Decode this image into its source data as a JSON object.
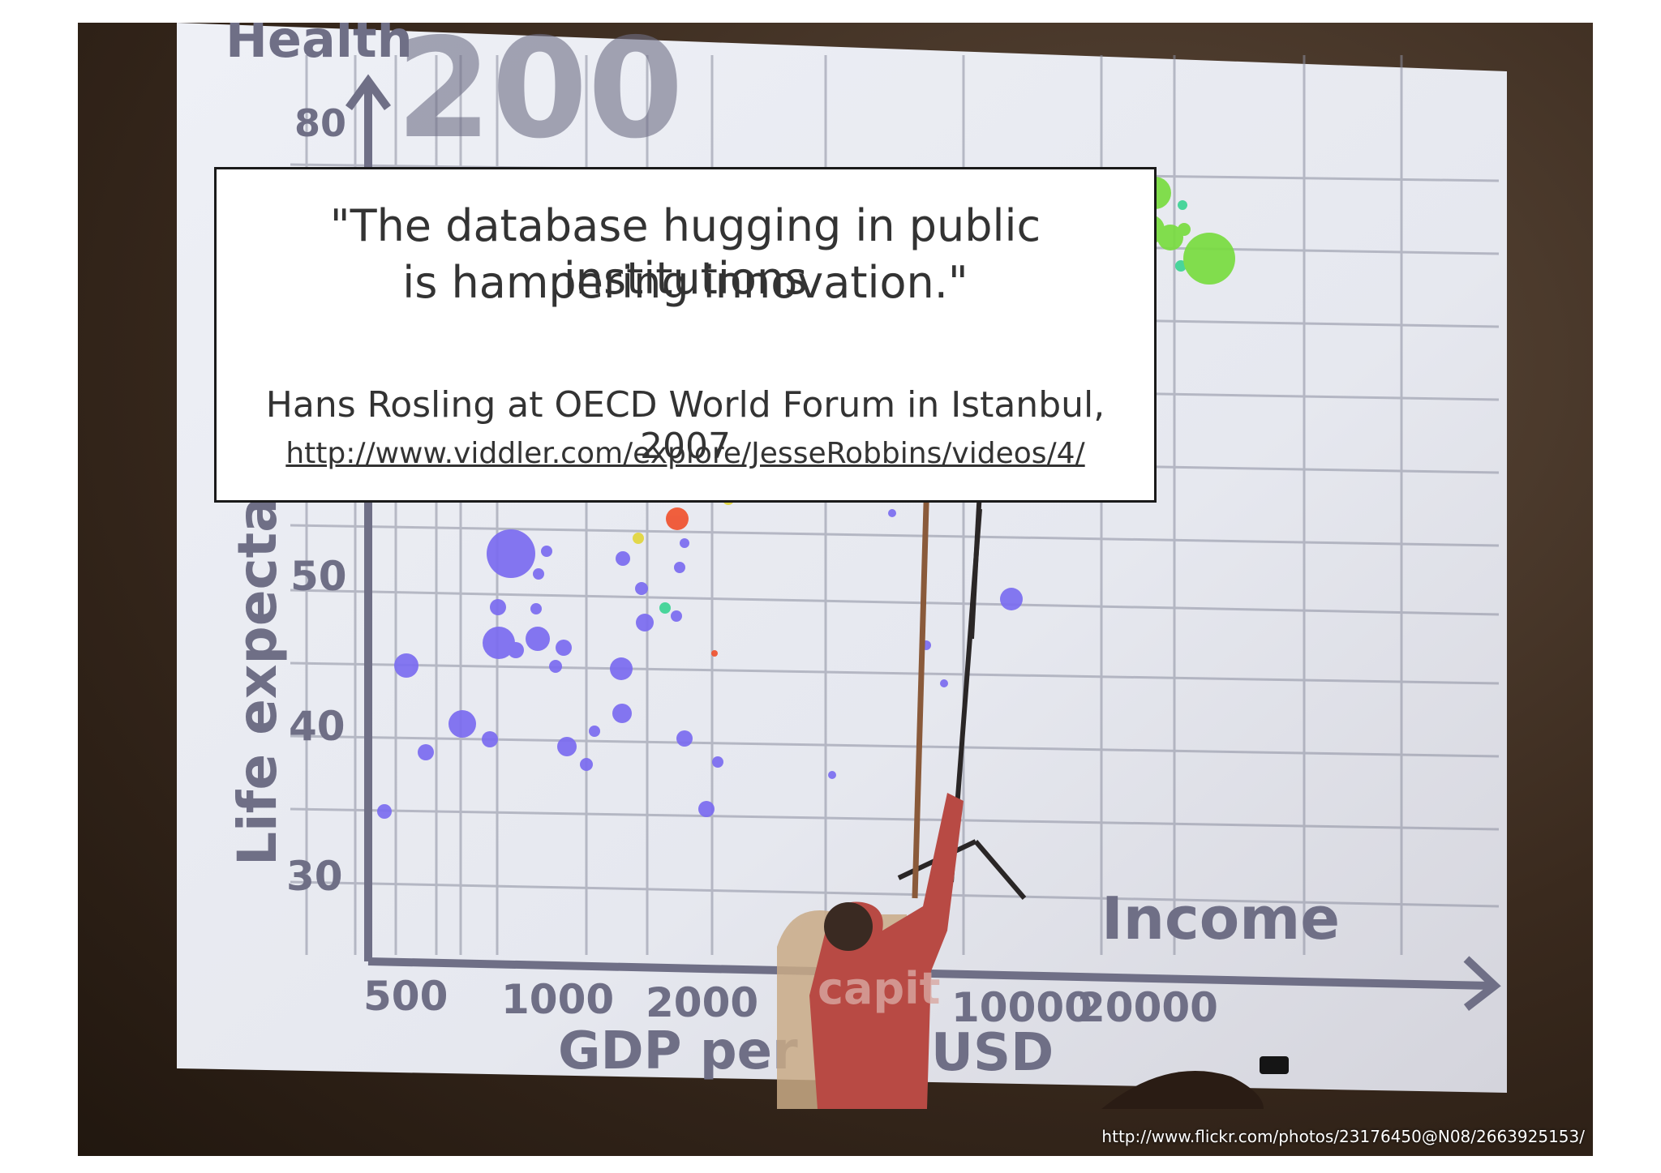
{
  "quote": {
    "line1": "\"The database hugging in public institutions",
    "line2": "is hampering innovation.\"",
    "attribution": "Hans Rosling at OECD World Forum in Istanbul, 2007",
    "link": "http://www.viddler.com/explore/JesseRobbins/videos/4/"
  },
  "photo_credit": "http://www.flickr.com/photos/23176450@N08/2663925153/",
  "projected_chart": {
    "top_word_fragment": "Health",
    "y_ticks": [
      "80",
      "50",
      "40",
      "30"
    ],
    "y_axis_label": "Life expectan",
    "x_ticks": [
      "500",
      "1000",
      "2000",
      "10000",
      "20000"
    ],
    "x_axis_label_left": "GDP per",
    "x_axis_label_right": "USD",
    "x_axis_word": "Income",
    "shirt_text": "capit",
    "bubble_colors": {
      "blue": "#7b6cf0",
      "green": "#79dc40",
      "red": "#f0522e",
      "yellow": "#e2d63c",
      "teal": "#3cd494",
      "orange": "#f0893c"
    }
  }
}
